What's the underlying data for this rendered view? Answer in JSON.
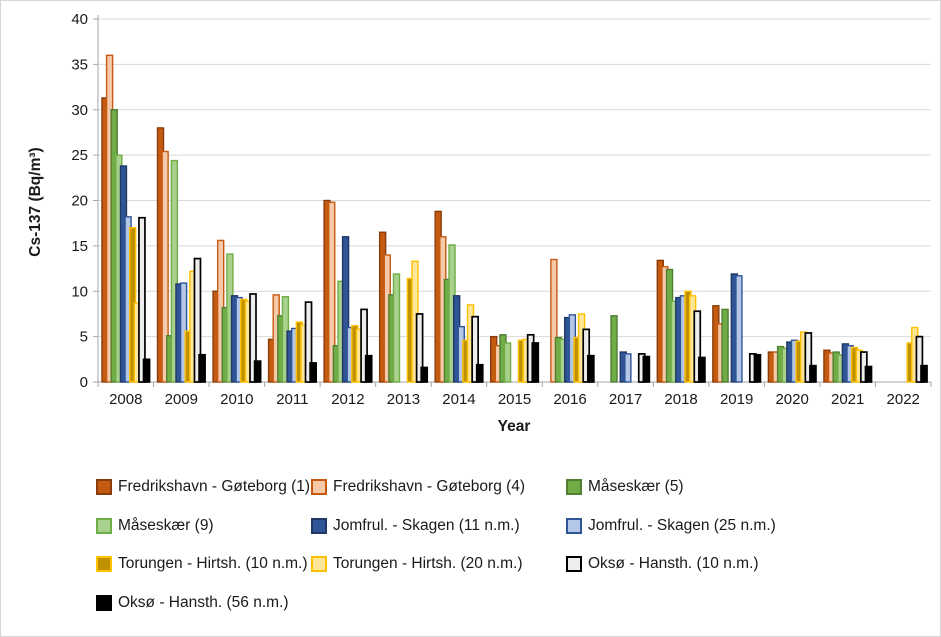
{
  "chart_data": {
    "type": "bar",
    "title": "",
    "xlabel": "Year",
    "ylabel": "Cs-137 (Bq/m³)",
    "ylim": [
      0,
      40
    ],
    "yticks": [
      0,
      5,
      10,
      15,
      20,
      25,
      30,
      35,
      40
    ],
    "grid": true,
    "legend_position": "bottom",
    "categories": [
      "2008",
      "2009",
      "2010",
      "2011",
      "2012",
      "2013",
      "2014",
      "2015",
      "2016",
      "2017",
      "2018",
      "2019",
      "2020",
      "2021",
      "2022"
    ],
    "series": [
      {
        "name": "Fredrikshavn - Gøteborg (1)",
        "fill": "#C55A11",
        "stroke": "#8A3D0B",
        "values": [
          31.3,
          28.0,
          10.0,
          4.7,
          20.0,
          16.5,
          18.8,
          5.0,
          0,
          0,
          13.4,
          8.4,
          3.3,
          3.5,
          0
        ]
      },
      {
        "name": "Fredrikshavn - Gøteborg (4)",
        "fill": "#F6C9A9",
        "stroke": "#C55A11",
        "values": [
          36.0,
          25.4,
          15.6,
          9.6,
          19.8,
          14.0,
          16.0,
          4.0,
          13.5,
          0,
          12.7,
          6.4,
          3.3,
          3.2,
          0
        ]
      },
      {
        "name": "Måseskær (5)",
        "fill": "#70AD47",
        "stroke": "#507E32",
        "values": [
          30.0,
          5.1,
          8.2,
          7.3,
          4.0,
          9.6,
          11.3,
          5.2,
          4.9,
          7.3,
          12.4,
          8.0,
          3.9,
          3.3,
          0
        ]
      },
      {
        "name": "Måseskær (9)",
        "fill": "#A9D18E",
        "stroke": "#70AD47",
        "values": [
          25.0,
          24.4,
          14.1,
          9.4,
          11.1,
          11.9,
          15.1,
          4.3,
          4.7,
          0,
          8.9,
          0,
          3.7,
          3.0,
          0
        ]
      },
      {
        "name": "Jomfrul. - Skagen (11 n.m.)",
        "fill": "#2F5597",
        "stroke": "#1F3864",
        "values": [
          23.8,
          10.8,
          9.5,
          5.6,
          16.0,
          0,
          9.5,
          0,
          7.1,
          3.3,
          9.3,
          11.9,
          4.4,
          4.2,
          0
        ]
      },
      {
        "name": "Jomfrul. - Skagen (25 n.m.)",
        "fill": "#B4C7E7",
        "stroke": "#2F5597",
        "values": [
          18.2,
          10.9,
          9.3,
          5.9,
          6.0,
          0,
          6.1,
          0,
          7.4,
          3.1,
          9.5,
          11.7,
          4.6,
          4.0,
          0
        ]
      },
      {
        "name": "Torungen - Hirtsh. (10 n.m.)",
        "fill": "#BF9000",
        "stroke": "#FFC000",
        "values": [
          17.0,
          5.6,
          9.1,
          6.6,
          6.2,
          11.4,
          4.6,
          4.6,
          4.9,
          0,
          10.0,
          0,
          4.5,
          3.8,
          4.3
        ]
      },
      {
        "name": "Torungen - Hirtsh. (20 n.m.)",
        "fill": "#FFE699",
        "stroke": "#FFC000",
        "values": [
          8.7,
          12.2,
          8.9,
          6.3,
          5.8,
          13.3,
          8.5,
          4.7,
          7.5,
          0,
          9.5,
          0,
          5.5,
          3.5,
          6.0
        ]
      },
      {
        "name": "Oksø - Hansth. (10 n.m.)",
        "fill": "#EDEDED",
        "stroke": "#000000",
        "values": [
          18.1,
          13.6,
          9.7,
          8.8,
          8.0,
          7.5,
          7.2,
          5.2,
          5.8,
          3.1,
          7.8,
          3.1,
          5.4,
          3.3,
          5.0
        ]
      },
      {
        "name": "Oksø - Hansth. (56 n.m.)",
        "fill": "#000000",
        "stroke": "#000000",
        "values": [
          2.5,
          3.0,
          2.3,
          2.1,
          2.9,
          1.6,
          1.9,
          4.3,
          2.9,
          2.8,
          2.7,
          3.0,
          1.8,
          1.7,
          1.8
        ]
      }
    ],
    "colors": {
      "gridline": "#D9D9D9",
      "axis": "#A6A6A6",
      "tick_text": "#1a1a1a"
    }
  }
}
